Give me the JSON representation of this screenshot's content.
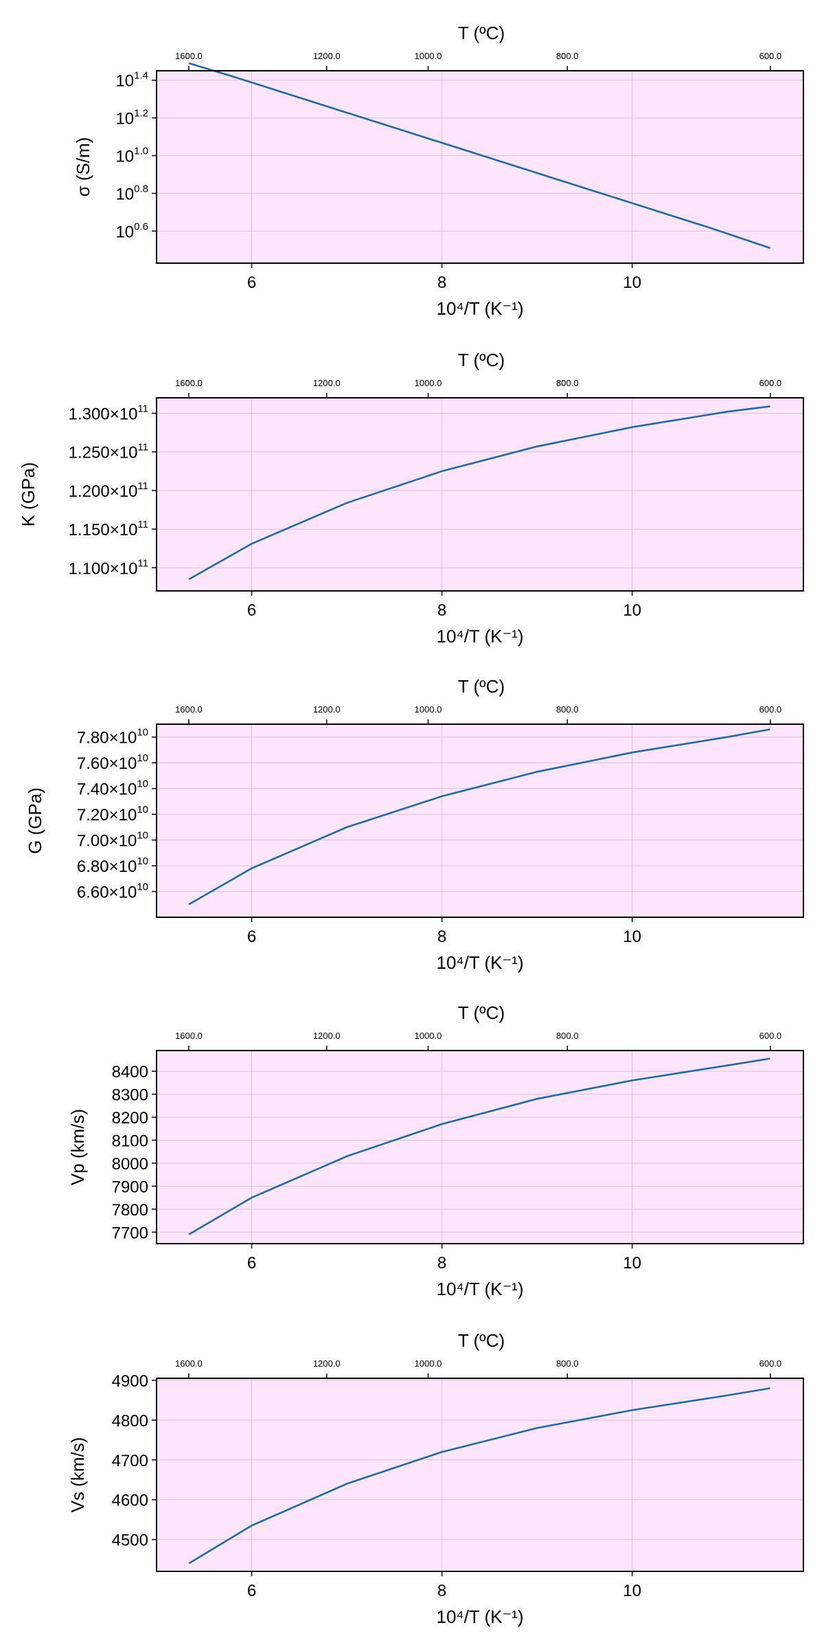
{
  "colors": {
    "plot_bg": "#fde6fb",
    "grid": "#d7bfd9",
    "line": "#1f69ad",
    "frame": "#000000"
  },
  "chart_data": [
    {
      "type": "line",
      "top_xlabel": "T (ºC)",
      "top_ticks": [
        {
          "value": 1600,
          "label": "1600.0"
        },
        {
          "value": 1200,
          "label": "1200.0"
        },
        {
          "value": 1000,
          "label": "1000.0"
        },
        {
          "value": 800,
          "label": "800.0"
        },
        {
          "value": 600,
          "label": "600.0"
        }
      ],
      "xlabel": "10⁴/T (K⁻¹)",
      "xlim": [
        5.0,
        11.8
      ],
      "xticks": [
        6,
        8,
        10
      ],
      "ylabel": "σ (S/m)",
      "yscale": "log",
      "ylim": [
        0.43,
        1.45
      ],
      "yticks": [
        {
          "exp": 0.6,
          "label": "10",
          "sup": "0.6"
        },
        {
          "exp": 0.8,
          "label": "10",
          "sup": "0.8"
        },
        {
          "exp": 1.0,
          "label": "10",
          "sup": "1.0"
        },
        {
          "exp": 1.2,
          "label": "10",
          "sup": "1.2"
        },
        {
          "exp": 1.4,
          "label": "10",
          "sup": "1.4"
        }
      ],
      "series": [
        {
          "x": [
            5.34,
            5.8,
            6.3,
            6.8,
            7.3,
            7.8,
            8.3,
            8.8,
            9.3,
            9.8,
            10.3,
            10.8,
            11.45
          ],
          "y_log10": [
            1.49,
            1.42,
            1.34,
            1.26,
            1.18,
            1.1,
            1.02,
            0.94,
            0.86,
            0.78,
            0.7,
            0.62,
            0.51
          ]
        }
      ]
    },
    {
      "type": "line",
      "top_xlabel": "T (ºC)",
      "top_ticks": [
        {
          "value": 1600,
          "label": "1600.0"
        },
        {
          "value": 1200,
          "label": "1200.0"
        },
        {
          "value": 1000,
          "label": "1000.0"
        },
        {
          "value": 800,
          "label": "800.0"
        },
        {
          "value": 600,
          "label": "600.0"
        }
      ],
      "xlabel": "10⁴/T (K⁻¹)",
      "xlim": [
        5.0,
        11.8
      ],
      "xticks": [
        6,
        8,
        10
      ],
      "ylabel": "K (GPa)",
      "ylim": [
        107000000000.0,
        132000000000.0
      ],
      "yticks": [
        {
          "value": 110000000000.0,
          "label": "1.100×10",
          "sup": "11"
        },
        {
          "value": 115000000000.0,
          "label": "1.150×10",
          "sup": "11"
        },
        {
          "value": 120000000000.0,
          "label": "1.200×10",
          "sup": "11"
        },
        {
          "value": 125000000000.0,
          "label": "1.250×10",
          "sup": "11"
        },
        {
          "value": 130000000000.0,
          "label": "1.300×10",
          "sup": "11"
        }
      ],
      "series": [
        {
          "x": [
            5.34,
            6.0,
            7.0,
            8.0,
            9.0,
            10.0,
            11.0,
            11.45
          ],
          "y": [
            108500000000.0,
            113100000000.0,
            118400000000.0,
            122500000000.0,
            125700000000.0,
            128200000000.0,
            130200000000.0,
            130900000000.0
          ]
        }
      ]
    },
    {
      "type": "line",
      "top_xlabel": "T (ºC)",
      "top_ticks": [
        {
          "value": 1600,
          "label": "1600.0"
        },
        {
          "value": 1200,
          "label": "1200.0"
        },
        {
          "value": 1000,
          "label": "1000.0"
        },
        {
          "value": 800,
          "label": "800.0"
        },
        {
          "value": 600,
          "label": "600.0"
        }
      ],
      "xlabel": "10⁴/T (K⁻¹)",
      "xlim": [
        5.0,
        11.8
      ],
      "xticks": [
        6,
        8,
        10
      ],
      "ylabel": "G (GPa)",
      "ylim": [
        64000000000.0,
        79000000000.0
      ],
      "yticks": [
        {
          "value": 66000000000.0,
          "label": "6.60×10",
          "sup": "10"
        },
        {
          "value": 68000000000.0,
          "label": "6.80×10",
          "sup": "10"
        },
        {
          "value": 70000000000.0,
          "label": "7.00×10",
          "sup": "10"
        },
        {
          "value": 72000000000.0,
          "label": "7.20×10",
          "sup": "10"
        },
        {
          "value": 74000000000.0,
          "label": "7.40×10",
          "sup": "10"
        },
        {
          "value": 76000000000.0,
          "label": "7.60×10",
          "sup": "10"
        },
        {
          "value": 78000000000.0,
          "label": "7.80×10",
          "sup": "10"
        }
      ],
      "series": [
        {
          "x": [
            5.34,
            6.0,
            7.0,
            8.0,
            9.0,
            10.0,
            11.0,
            11.45
          ],
          "y": [
            65000000000.0,
            67800000000.0,
            71000000000.0,
            73400000000.0,
            75300000000.0,
            76800000000.0,
            78000000000.0,
            78600000000.0
          ]
        }
      ]
    },
    {
      "type": "line",
      "top_xlabel": "T (ºC)",
      "top_ticks": [
        {
          "value": 1600,
          "label": "1600.0"
        },
        {
          "value": 1200,
          "label": "1200.0"
        },
        {
          "value": 1000,
          "label": "1000.0"
        },
        {
          "value": 800,
          "label": "800.0"
        },
        {
          "value": 600,
          "label": "600.0"
        }
      ],
      "xlabel": "10⁴/T (K⁻¹)",
      "xlim": [
        5.0,
        11.8
      ],
      "xticks": [
        6,
        8,
        10
      ],
      "ylabel": "Vp (km/s)",
      "ylim": [
        7650,
        8490
      ],
      "yticks": [
        {
          "value": 7700,
          "label": "7700"
        },
        {
          "value": 7800,
          "label": "7800"
        },
        {
          "value": 7900,
          "label": "7900"
        },
        {
          "value": 8000,
          "label": "8000"
        },
        {
          "value": 8100,
          "label": "8100"
        },
        {
          "value": 8200,
          "label": "8200"
        },
        {
          "value": 8300,
          "label": "8300"
        },
        {
          "value": 8400,
          "label": "8400"
        }
      ],
      "series": [
        {
          "x": [
            5.34,
            6.0,
            7.0,
            8.0,
            9.0,
            10.0,
            11.0,
            11.45
          ],
          "y": [
            7690,
            7850,
            8030,
            8170,
            8280,
            8360,
            8425,
            8455
          ]
        }
      ]
    },
    {
      "type": "line",
      "top_xlabel": "T (ºC)",
      "top_ticks": [
        {
          "value": 1600,
          "label": "1600.0"
        },
        {
          "value": 1200,
          "label": "1200.0"
        },
        {
          "value": 1000,
          "label": "1000.0"
        },
        {
          "value": 800,
          "label": "800.0"
        },
        {
          "value": 600,
          "label": "600.0"
        }
      ],
      "xlabel": "10⁴/T (K⁻¹)",
      "xlim": [
        5.0,
        11.8
      ],
      "xticks": [
        6,
        8,
        10
      ],
      "ylabel": "Vs (km/s)",
      "ylim": [
        4420,
        4905
      ],
      "yticks": [
        {
          "value": 4500,
          "label": "4500"
        },
        {
          "value": 4600,
          "label": "4600"
        },
        {
          "value": 4700,
          "label": "4700"
        },
        {
          "value": 4800,
          "label": "4800"
        },
        {
          "value": 4900,
          "label": "4900"
        }
      ],
      "series": [
        {
          "x": [
            5.34,
            6.0,
            7.0,
            8.0,
            9.0,
            10.0,
            11.0,
            11.45
          ],
          "y": [
            4440,
            4535,
            4640,
            4720,
            4780,
            4825,
            4862,
            4880
          ]
        }
      ]
    }
  ]
}
